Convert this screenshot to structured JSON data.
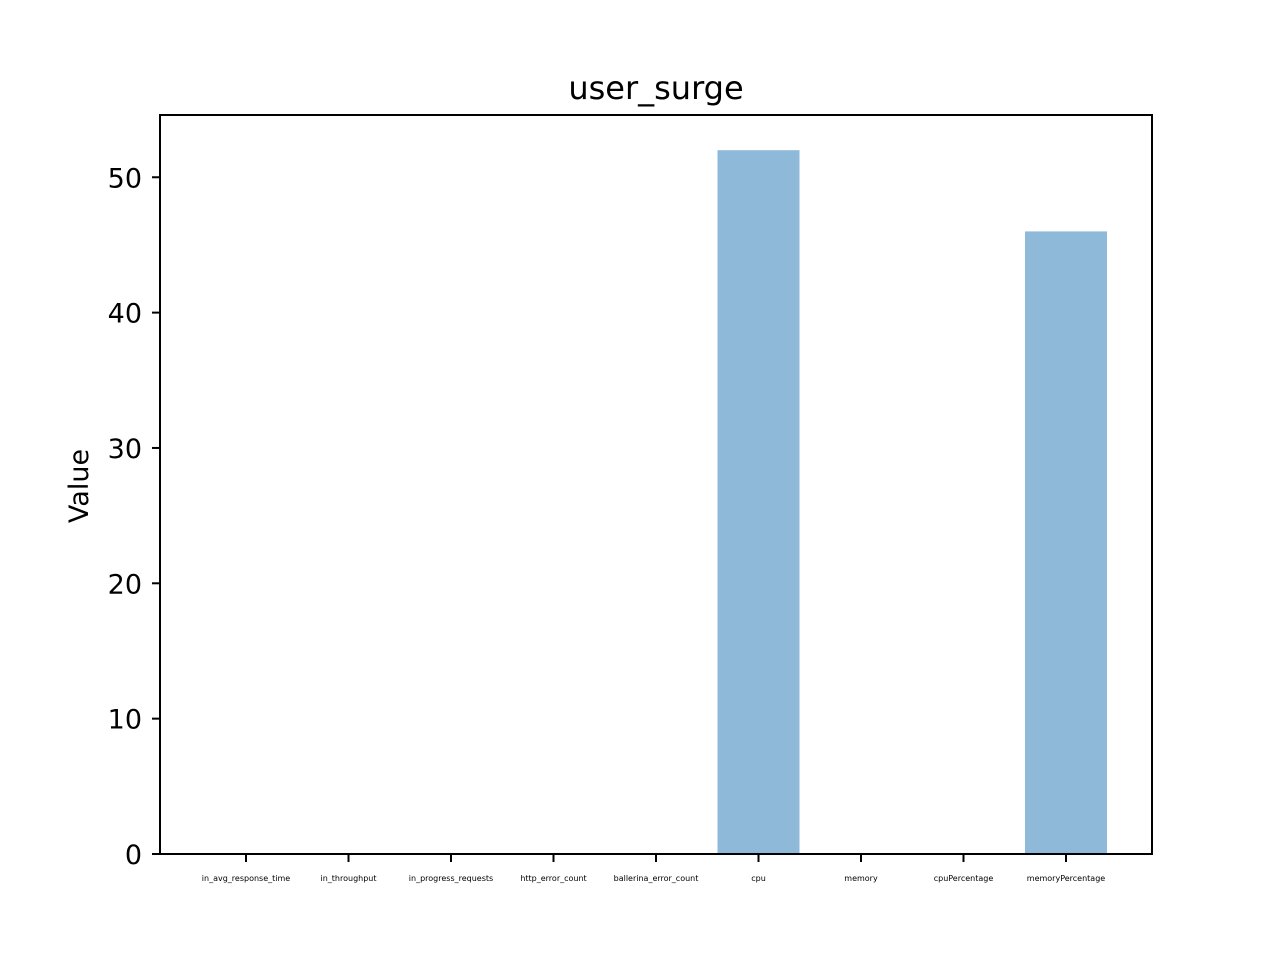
{
  "chart_data": {
    "type": "bar",
    "title": "user_surge",
    "xlabel": "",
    "ylabel": "Value",
    "categories": [
      "in_avg_response_time",
      "in_throughput",
      "in_progress_requests",
      "http_error_count",
      "ballerina_error_count",
      "cpu",
      "memory",
      "cpuPercentage",
      "memoryPercentage"
    ],
    "values": [
      0,
      0,
      0,
      0,
      0,
      52,
      0,
      0,
      46
    ],
    "ylim": [
      0,
      54.6
    ],
    "yticks": [
      0,
      10,
      20,
      30,
      40,
      50
    ],
    "grid": false,
    "bar_color": "#8fb9d8",
    "axis_color": "#000000"
  }
}
